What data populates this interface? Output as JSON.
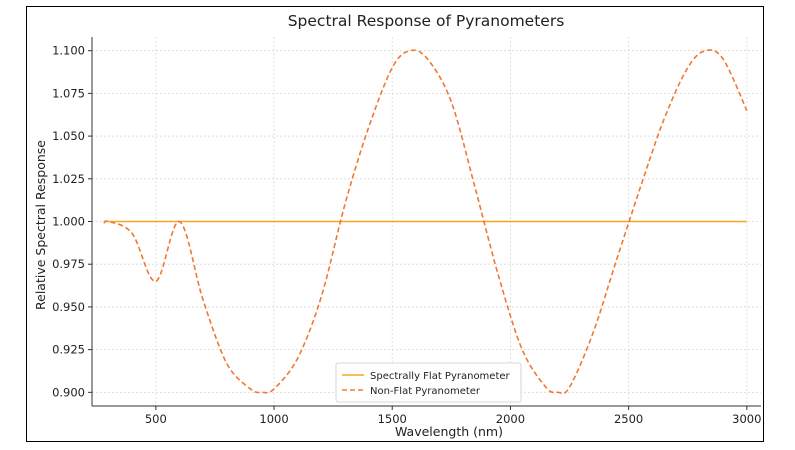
{
  "chart_data": {
    "type": "line",
    "title": "Spectral Response of Pyranometers",
    "xlabel": "Wavelength (nm)",
    "ylabel": "Relative Spectral Response",
    "xlim": [
      230,
      3060
    ],
    "ylim": [
      0.892,
      1.108
    ],
    "xticks": [
      500,
      1000,
      1500,
      2000,
      2500,
      3000
    ],
    "xtick_labels": [
      "500",
      "1000",
      "1500",
      "2000",
      "2500",
      "3000"
    ],
    "yticks": [
      0.9,
      0.925,
      0.95,
      0.975,
      1.0,
      1.025,
      1.05,
      1.075,
      1.1
    ],
    "ytick_labels": [
      "0.900",
      "0.925",
      "0.950",
      "0.975",
      "1.000",
      "1.025",
      "1.050",
      "1.075",
      "1.100"
    ],
    "grid": true,
    "legend_position": "bottom-center",
    "series": [
      {
        "name": "Spectrally Flat Pyranometer",
        "color": "#f5a623",
        "style": "solid",
        "x": [
          280,
          3000
        ],
        "y": [
          1.0,
          1.0
        ]
      },
      {
        "name": "Non-Flat Pyranometer",
        "color": "#f07830",
        "style": "dashed",
        "x": [
          280,
          300,
          400,
          500,
          600,
          700,
          800,
          900,
          950,
          1000,
          1100,
          1200,
          1300,
          1400,
          1500,
          1575,
          1650,
          1750,
          1850,
          1950,
          2050,
          2150,
          2200,
          2250,
          2350,
          2450,
          2550,
          2650,
          2750,
          2825,
          2900,
          3000
        ],
        "y": [
          0.999,
          1.0,
          0.993,
          0.965,
          1.0,
          0.954,
          0.917,
          0.902,
          0.9,
          0.902,
          0.92,
          0.956,
          1.01,
          1.055,
          1.09,
          1.1,
          1.095,
          1.07,
          1.02,
          0.968,
          0.925,
          0.903,
          0.9,
          0.903,
          0.935,
          0.978,
          1.02,
          1.06,
          1.09,
          1.1,
          1.095,
          1.065
        ]
      }
    ]
  }
}
